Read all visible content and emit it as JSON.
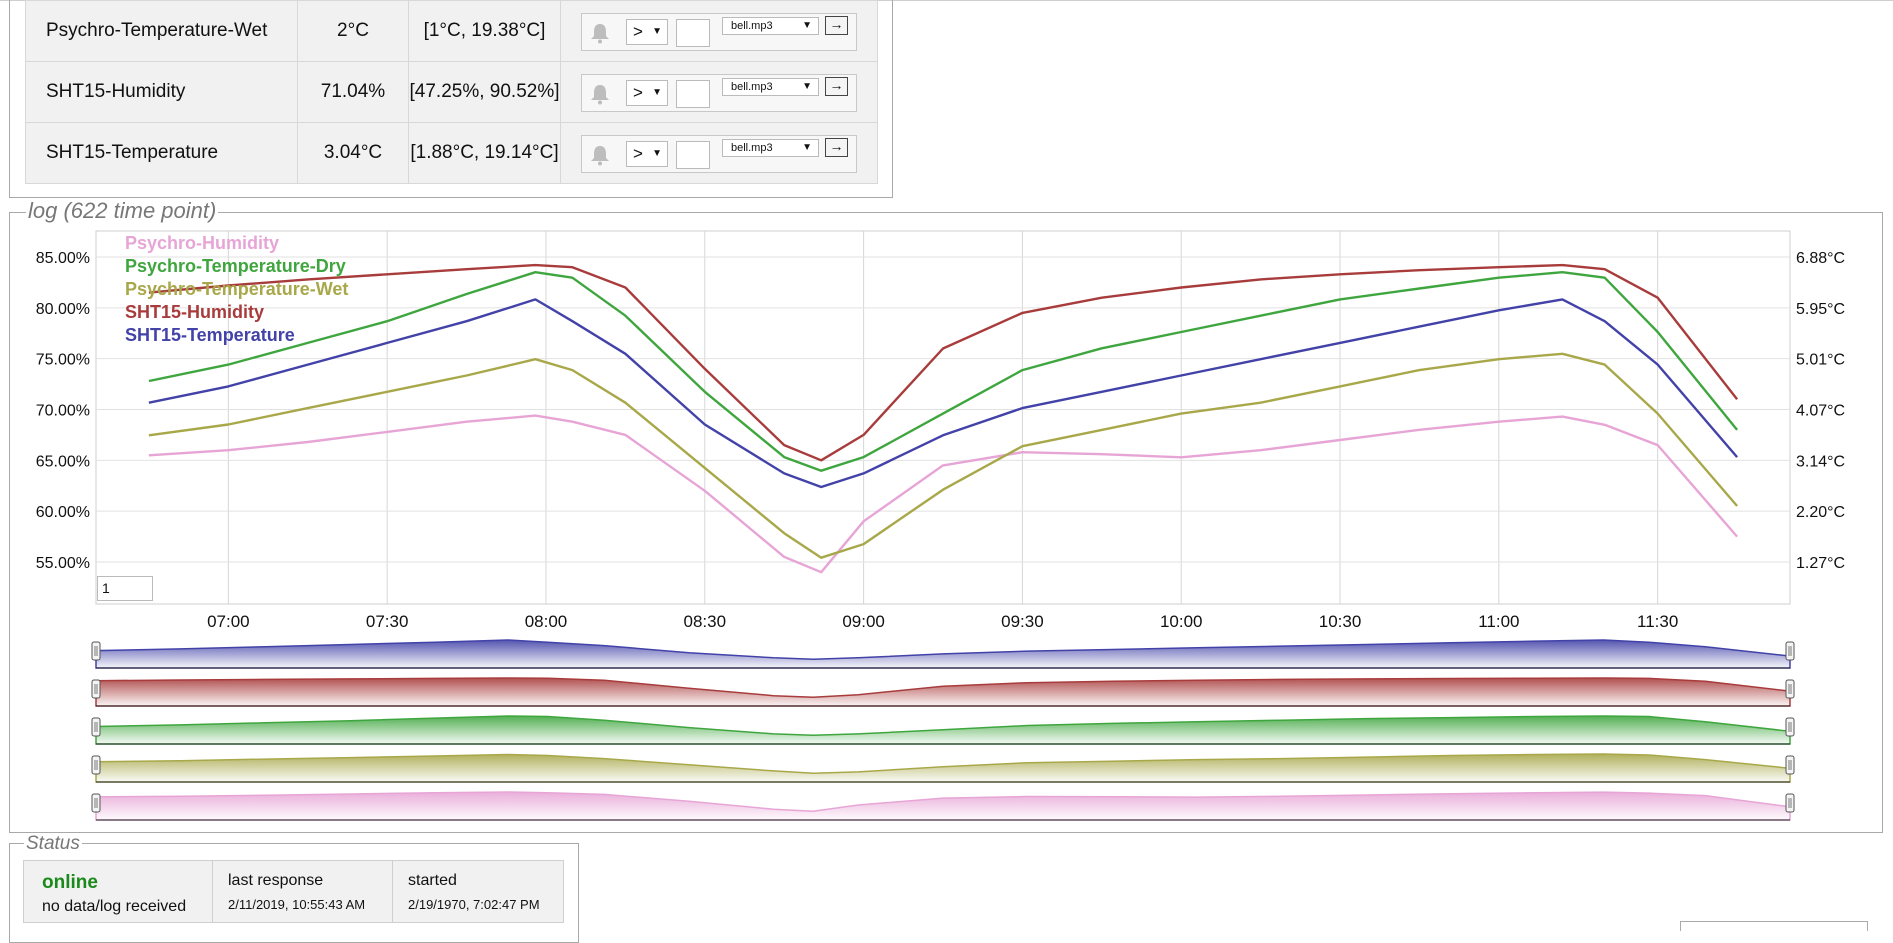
{
  "sensors": [
    {
      "name": "Psychro-Temperature-Wet",
      "value": "2°C",
      "range": "[1°C, 19.38°C]",
      "operator": ">",
      "threshold": "",
      "sound": "bell.mp3"
    },
    {
      "name": "SHT15-Humidity",
      "value": "71.04%",
      "range": "[47.25%, 90.52%]",
      "operator": ">",
      "threshold": "",
      "sound": "bell.mp3"
    },
    {
      "name": "SHT15-Temperature",
      "value": "3.04°C",
      "range": "[1.88°C, 19.14°C]",
      "operator": ">",
      "threshold": "",
      "sound": "bell.mp3"
    }
  ],
  "controls": {
    "go_label": "→",
    "icons": {
      "alarm": "bell-icon",
      "go": "arrow-right-icon"
    }
  },
  "log": {
    "title": "log (622 time point)",
    "range_input": "1"
  },
  "chart_data": {
    "type": "line",
    "x": [
      "06:45",
      "07:00",
      "07:15",
      "07:30",
      "07:45",
      "07:58",
      "08:05",
      "08:15",
      "08:30",
      "08:45",
      "08:52",
      "09:00",
      "09:15",
      "09:30",
      "09:45",
      "10:00",
      "10:15",
      "10:30",
      "10:45",
      "11:00",
      "11:12",
      "11:20",
      "11:30",
      "11:45"
    ],
    "x_ticks": [
      "07:00",
      "07:30",
      "08:00",
      "08:30",
      "09:00",
      "09:30",
      "10:00",
      "10:30",
      "11:00",
      "11:30"
    ],
    "y_left_ticks": [
      "85.00%",
      "80.00%",
      "75.00%",
      "70.00%",
      "65.00%",
      "60.00%",
      "55.00%"
    ],
    "y_right_ticks": [
      "6.88°C",
      "5.95°C",
      "5.01°C",
      "4.07°C",
      "3.14°C",
      "2.20°C",
      "1.27°C"
    ],
    "legend_position": "top-left",
    "grid": true,
    "series": [
      {
        "name": "Psychro-Humidity",
        "color": "#e7a5d6",
        "axis": "left",
        "values": [
          65.5,
          66.0,
          66.8,
          67.8,
          68.8,
          69.4,
          68.8,
          67.5,
          62.0,
          55.5,
          54.0,
          59.0,
          64.5,
          65.8,
          65.6,
          65.3,
          66.0,
          67.0,
          68.0,
          68.8,
          69.3,
          68.5,
          66.5,
          57.5
        ]
      },
      {
        "name": "Psychro-Temperature-Dry",
        "color": "#3fa63f",
        "axis": "right",
        "values": [
          4.6,
          4.9,
          5.3,
          5.7,
          6.2,
          6.6,
          6.5,
          5.8,
          4.4,
          3.2,
          2.95,
          3.2,
          4.0,
          4.8,
          5.2,
          5.5,
          5.8,
          6.1,
          6.3,
          6.5,
          6.6,
          6.5,
          5.5,
          3.7
        ]
      },
      {
        "name": "Psychro-Temperature-Wet",
        "color": "#a8a84a",
        "axis": "right",
        "values": [
          3.6,
          3.8,
          4.1,
          4.4,
          4.7,
          5.0,
          4.8,
          4.2,
          3.0,
          1.8,
          1.35,
          1.6,
          2.6,
          3.4,
          3.7,
          4.0,
          4.2,
          4.5,
          4.8,
          5.0,
          5.1,
          4.9,
          4.0,
          2.3
        ]
      },
      {
        "name": "SHT15-Humidity",
        "color": "#a83c3c",
        "axis": "left",
        "values": [
          81.5,
          82.2,
          82.8,
          83.3,
          83.8,
          84.2,
          84.0,
          82.0,
          74.0,
          66.5,
          65.0,
          67.5,
          76.0,
          79.5,
          81.0,
          82.0,
          82.8,
          83.3,
          83.7,
          84.0,
          84.2,
          83.8,
          81.0,
          71.0
        ]
      },
      {
        "name": "SHT15-Temperature",
        "color": "#4242a8",
        "axis": "right",
        "values": [
          4.2,
          4.5,
          4.9,
          5.3,
          5.7,
          6.1,
          5.7,
          5.1,
          3.8,
          2.9,
          2.65,
          2.9,
          3.6,
          4.1,
          4.4,
          4.7,
          5.0,
          5.3,
          5.6,
          5.9,
          6.1,
          5.7,
          4.9,
          3.2
        ]
      }
    ]
  },
  "status": {
    "title": "Status",
    "state": "online",
    "detail": "no data/log received",
    "last_response_label": "last response",
    "last_response": "2/11/2019, 10:55:43 AM",
    "started_label": "started",
    "started": "2/19/1970, 7:02:47 PM"
  }
}
